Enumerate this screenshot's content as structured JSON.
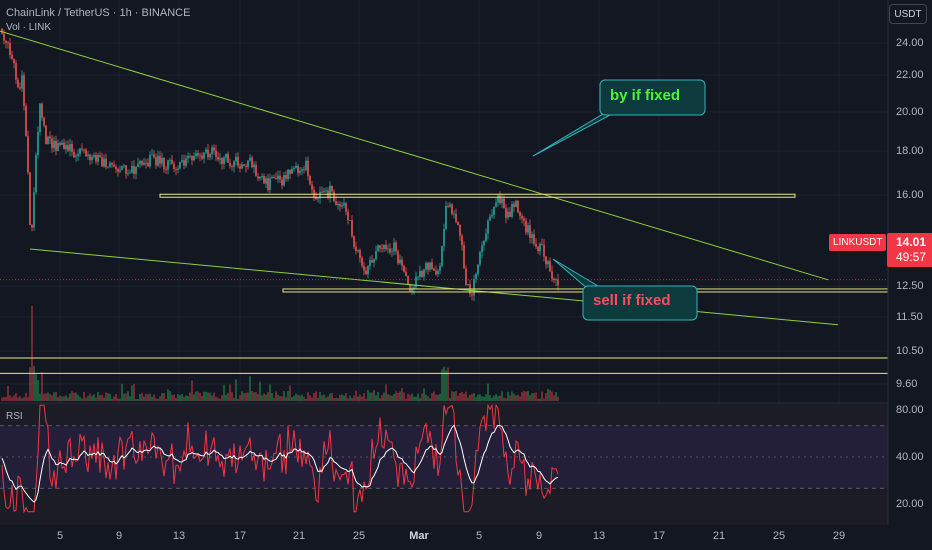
{
  "header": {
    "symbol_line": "ChainLink / TetherUS · 1h · BINANCE",
    "volume_label": "Vol · LINK"
  },
  "currency_button": "USDT",
  "price_axis": {
    "ticks": [
      "24.00",
      "22.00",
      "20.00",
      "18.00",
      "16.00",
      "12.50",
      "11.50",
      "10.50",
      "9.60"
    ]
  },
  "rsi_axis": {
    "ticks": [
      "80.00",
      "40.00",
      "20.00"
    ]
  },
  "time_axis": {
    "ticks": [
      "5",
      "9",
      "13",
      "17",
      "21",
      "25",
      "Mar",
      "5",
      "9",
      "13",
      "17",
      "21",
      "25",
      "29"
    ]
  },
  "price_tag": {
    "symbol": "LINKUSDT",
    "price": "14.01",
    "countdown": "49:57",
    "color": "#f23645"
  },
  "annotations": {
    "buy": "by if fixed",
    "sell": "sell if fixed"
  },
  "rsi_label": "RSI",
  "colors": {
    "background": "#131722",
    "up": "#26a69a",
    "down": "#ef5350",
    "trendline": "#8ed13b",
    "level": "#e8e87a",
    "buy_text": "#4ef23a",
    "sell_text": "#ff4d5e",
    "rsi": "#f23645",
    "rsi_ma": "#ffffff"
  },
  "chart_data": [
    {
      "type": "candlestick",
      "title": "ChainLink / TetherUS · 1h · BINANCE",
      "ylim": [
        9.4,
        24.8
      ],
      "x_ticks": [
        "5",
        "9",
        "13",
        "17",
        "21",
        "25",
        "Mar",
        "5",
        "9",
        "13",
        "17",
        "21",
        "25",
        "29"
      ],
      "y_ticks": [
        24.0,
        22.0,
        20.0,
        18.0,
        16.0,
        12.5,
        11.5,
        10.5,
        9.6
      ],
      "price_path": [
        [
          0,
          24.6
        ],
        [
          12,
          23.6
        ],
        [
          17,
          21.9
        ],
        [
          22,
          22.5
        ],
        [
          27,
          19.5
        ],
        [
          31,
          15.2
        ],
        [
          35,
          18.5
        ],
        [
          40,
          21.5
        ],
        [
          45,
          20.0
        ],
        [
          55,
          19.7
        ],
        [
          70,
          19.5
        ],
        [
          90,
          19.2
        ],
        [
          110,
          18.7
        ],
        [
          130,
          18.5
        ],
        [
          150,
          19.1
        ],
        [
          170,
          18.8
        ],
        [
          190,
          19.0
        ],
        [
          210,
          19.4
        ],
        [
          230,
          19.0
        ],
        [
          250,
          18.9
        ],
        [
          265,
          18.0
        ],
        [
          285,
          18.3
        ],
        [
          305,
          18.9
        ],
        [
          315,
          17.6
        ],
        [
          330,
          17.7
        ],
        [
          345,
          17.0
        ],
        [
          355,
          15.5
        ],
        [
          365,
          14.2
        ],
        [
          380,
          15.5
        ],
        [
          395,
          15.3
        ],
        [
          410,
          13.6
        ],
        [
          425,
          14.6
        ],
        [
          440,
          14.4
        ],
        [
          447,
          17.4
        ],
        [
          458,
          16.5
        ],
        [
          466,
          14.0
        ],
        [
          472,
          13.4
        ],
        [
          480,
          14.9
        ],
        [
          490,
          16.6
        ],
        [
          500,
          17.5
        ],
        [
          507,
          16.7
        ],
        [
          517,
          17.2
        ],
        [
          525,
          16.3
        ],
        [
          535,
          15.6
        ],
        [
          545,
          15.1
        ],
        [
          552,
          13.9
        ],
        [
          558,
          14.0
        ]
      ],
      "last_price": 14.01,
      "support_level": 13.55,
      "resistance_level": 17.55,
      "trendlines": [
        {
          "from": [
            0,
            24.5
          ],
          "to": [
            828,
            14.0
          ]
        },
        {
          "from": [
            30,
            15.3
          ],
          "to": [
            838,
            12.1
          ]
        }
      ],
      "annotations": [
        "by if fixed",
        "sell if fixed"
      ]
    },
    {
      "type": "bar",
      "title": "Vol · LINK",
      "reference_levels": [
        10.7,
        10.05
      ]
    },
    {
      "type": "line",
      "title": "RSI",
      "ylim": [
        15,
        85
      ],
      "y_ticks": [
        80.0,
        40.0,
        20.0
      ],
      "bands": [
        70,
        30
      ],
      "midline": 50,
      "last_value": 42
    }
  ]
}
